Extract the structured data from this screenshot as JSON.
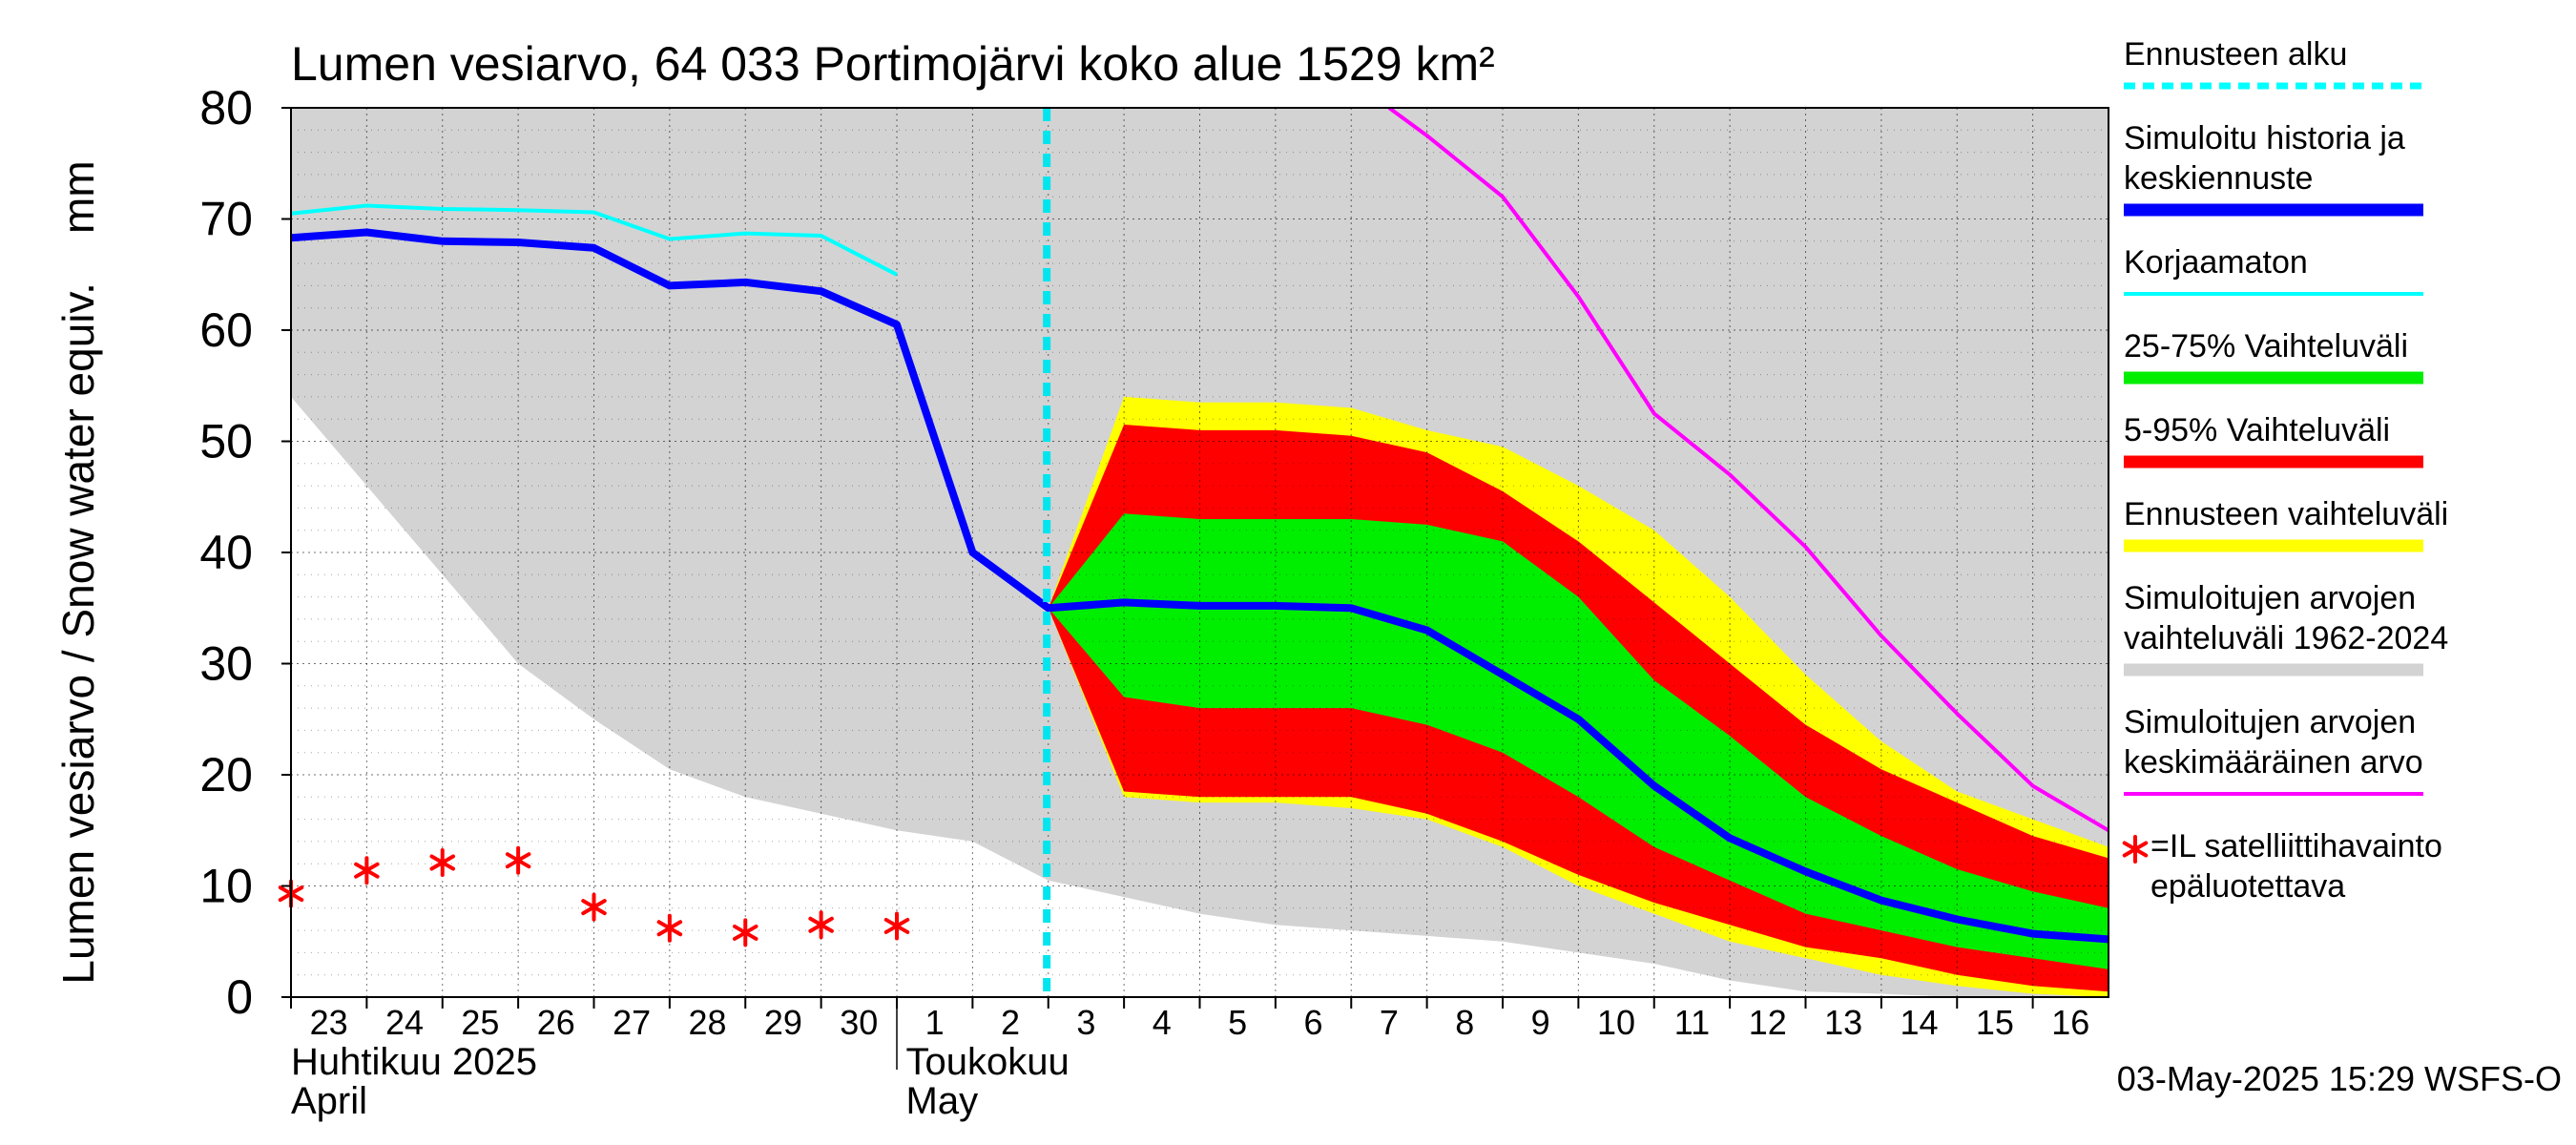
{
  "chart_data": {
    "type": "area",
    "title": "Lumen vesiarvo, 64 033 Portimojärvi koko alue 1529 km²",
    "ylabel": "Lumen vesiarvo / Snow water equiv.    mm",
    "ylim": [
      0,
      80
    ],
    "yticks": [
      0,
      10,
      20,
      30,
      40,
      50,
      60,
      70,
      80
    ],
    "x_start_day": "23 April",
    "day_labels": [
      "23",
      "24",
      "25",
      "26",
      "27",
      "28",
      "29",
      "30",
      "1",
      "2",
      "3",
      "4",
      "5",
      "6",
      "7",
      "8",
      "9",
      "10",
      "11",
      "12",
      "13",
      "14",
      "15",
      "16"
    ],
    "month_labels": [
      {
        "fi": "Huhtikuu  2025",
        "en": "April",
        "day_index": 0
      },
      {
        "fi": "Toukokuu",
        "en": "May",
        "day_index": 9
      }
    ],
    "forecast_start_day_index": 10,
    "series": [
      {
        "name": "Simuloitujen arvojen vaihteluväli 1962-2024",
        "kind": "band",
        "color": "#d3d3d3",
        "x": [
          0,
          1,
          2,
          3,
          4,
          5,
          6,
          7,
          8,
          9,
          10,
          11,
          12,
          13,
          14,
          15,
          16,
          17,
          18,
          19,
          20,
          21,
          22,
          23,
          24
        ],
        "lower": [
          54,
          46,
          38,
          30,
          25,
          20.5,
          18,
          16.5,
          15,
          14,
          10.5,
          9,
          7.5,
          6.5,
          6,
          5.5,
          5,
          4,
          3,
          1.5,
          0.5,
          0.3,
          0,
          0,
          0
        ],
        "upper": [
          80,
          80,
          80,
          80,
          80,
          80,
          80,
          80,
          80,
          80,
          80,
          80,
          80,
          80,
          80,
          80,
          80,
          80,
          80,
          80,
          80,
          80,
          80,
          80,
          80
        ]
      },
      {
        "name": "Ennusteen vaihteluväli",
        "kind": "band",
        "color": "#ffff00",
        "x": [
          10,
          11,
          12,
          13,
          14,
          15,
          16,
          17,
          18,
          19,
          20,
          21,
          22,
          23,
          24
        ],
        "lower": [
          35,
          18,
          17.5,
          17.5,
          17,
          16,
          13.5,
          10,
          7.5,
          5,
          3.5,
          2,
          1,
          0.3,
          0
        ],
        "upper": [
          35,
          54,
          53.5,
          53.5,
          53,
          51,
          49.5,
          46,
          42,
          36,
          29,
          23,
          18.5,
          16,
          13.5
        ]
      },
      {
        "name": "5-95% Vaihteluväli",
        "kind": "band",
        "color": "#ff0000",
        "x": [
          10,
          11,
          12,
          13,
          14,
          15,
          16,
          17,
          18,
          19,
          20,
          21,
          22,
          23,
          24
        ],
        "lower": [
          35,
          18.5,
          18,
          18,
          18,
          16.5,
          14,
          11,
          8.5,
          6.5,
          4.5,
          3.5,
          2,
          1,
          0.5
        ],
        "upper": [
          35,
          51.5,
          51,
          51,
          50.5,
          49,
          45.5,
          41,
          35.5,
          30,
          24.5,
          20.5,
          17.5,
          14.5,
          12.5
        ]
      },
      {
        "name": "25-75% Vaihteluväli",
        "kind": "band",
        "color": "#00ee00",
        "x": [
          10,
          11,
          12,
          13,
          14,
          15,
          16,
          17,
          18,
          19,
          20,
          21,
          22,
          23,
          24
        ],
        "lower": [
          35,
          27,
          26,
          26,
          26,
          24.5,
          22,
          18,
          13.5,
          10.5,
          7.5,
          6,
          4.5,
          3.5,
          2.5
        ],
        "upper": [
          35,
          43.5,
          43,
          43,
          43,
          42.5,
          41,
          36,
          28.5,
          23.5,
          18,
          14.5,
          11.5,
          9.5,
          8
        ]
      },
      {
        "name": "Korjaamaton",
        "kind": "line",
        "color": "#00ffff",
        "x": [
          0,
          1,
          2,
          3,
          4,
          5,
          6,
          7,
          8
        ],
        "y": [
          70.5,
          71.2,
          70.9,
          70.8,
          70.6,
          68.2,
          68.7,
          68.5,
          65
        ]
      },
      {
        "name": "Simuloitujen arvojen keskimääräinen arvo",
        "kind": "line",
        "color": "#ff00ff",
        "x": [
          14.5,
          15,
          16,
          17,
          18,
          19,
          20,
          21,
          22,
          23,
          24
        ],
        "y": [
          80,
          77.5,
          72,
          63,
          52.5,
          47,
          40.5,
          32.5,
          25.5,
          19,
          15
        ]
      },
      {
        "name": "Simuloitu historia ja keskiennuste",
        "kind": "line",
        "color": "#0000ff",
        "x": [
          0,
          1,
          2,
          3,
          4,
          5,
          6,
          7,
          8,
          9,
          10,
          11,
          12,
          13,
          14,
          15,
          16,
          17,
          18,
          19,
          20,
          21,
          22,
          23,
          24
        ],
        "y": [
          68.3,
          68.8,
          68,
          67.9,
          67.4,
          64,
          64.3,
          63.5,
          60.5,
          40,
          35,
          35.5,
          35.2,
          35.2,
          35,
          33,
          29,
          25,
          19,
          14.3,
          11.3,
          8.7,
          7,
          5.7,
          5.2
        ]
      },
      {
        "name": "=IL satelliittihavainto epäluotettava",
        "kind": "scatter",
        "color": "#ff0000",
        "x": [
          0,
          1,
          2,
          3,
          4,
          5,
          6,
          7,
          8
        ],
        "y": [
          9.3,
          11.4,
          12.1,
          12.3,
          8.1,
          6.2,
          5.8,
          6.5,
          6.4
        ]
      }
    ],
    "legend": {
      "placement": "right",
      "items": [
        {
          "label": "Ennusteen alku",
          "color": "#00ffff",
          "style": "dashed"
        },
        {
          "label": "Simuloitu historia ja\nkeskiennuste",
          "color": "#0000ff",
          "style": "thick"
        },
        {
          "label": "Korjaamaton",
          "color": "#00ffff",
          "style": "line"
        },
        {
          "label": "25-75% Vaihteluväli",
          "color": "#00ee00",
          "style": "thick"
        },
        {
          "label": "5-95% Vaihteluväli",
          "color": "#ff0000",
          "style": "thick"
        },
        {
          "label": "Ennusteen vaihteluväli",
          "color": "#ffff00",
          "style": "thick"
        },
        {
          "label": "Simuloitujen arvojen\nvaihteluväli 1962-2024",
          "color": "#d3d3d3",
          "style": "thick"
        },
        {
          "label": "Simuloitujen arvojen\nkeskimääräinen arvo",
          "color": "#ff00ff",
          "style": "line"
        },
        {
          "label": "=IL satelliittihavainto\nepäluotettava",
          "color": "#ff0000",
          "style": "star"
        }
      ]
    },
    "footer": "03-May-2025 15:29 WSFS-O"
  }
}
